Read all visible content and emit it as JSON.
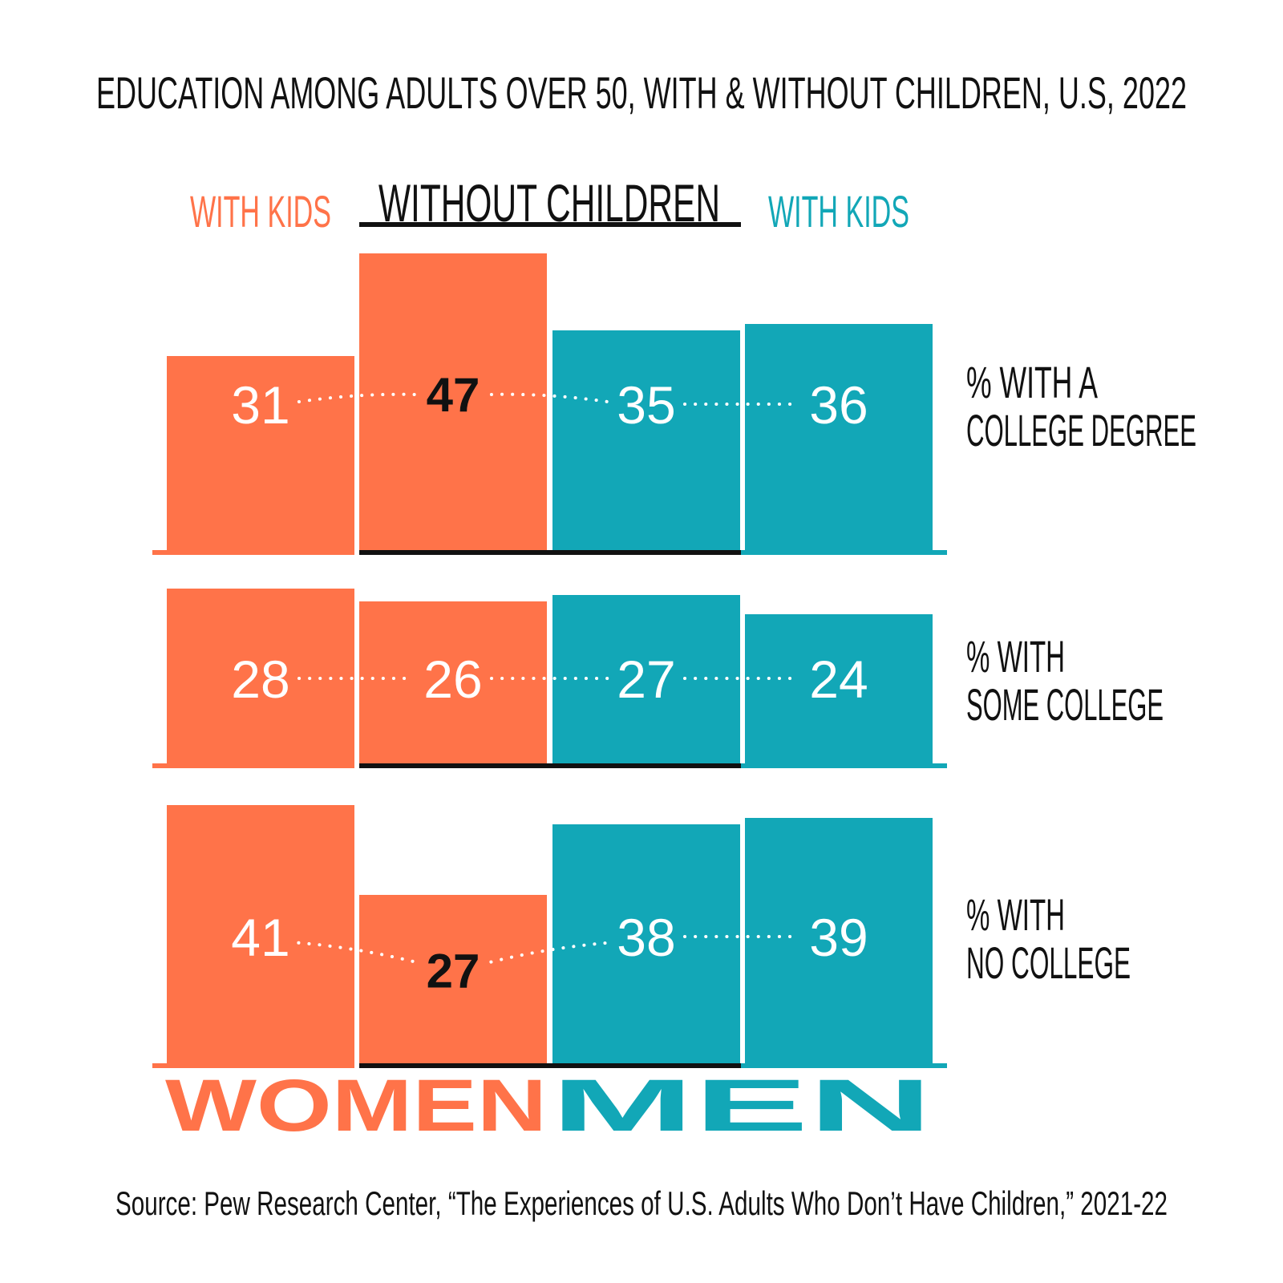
{
  "chart_data": {
    "type": "bar",
    "title": "EDUCATION AMONG ADULTS OVER 50, WITH & WITHOUT CHILDREN, U.S, 2022",
    "source": "Source: Pew Research Center, “The Experiences of U.S. Adults Who Don’t Have Children,” 2021-22",
    "column_headers": [
      "WITH KIDS",
      "WITHOUT CHILDREN",
      "WITH KIDS"
    ],
    "group_labels": [
      "WOMEN",
      "MEN"
    ],
    "categories": [
      "Women with kids",
      "Women without children",
      "Men without children",
      "Men with kids"
    ],
    "rows": [
      {
        "label_lines": [
          "% WITH A",
          "COLLEGE DEGREE"
        ],
        "values": [
          31,
          47,
          35,
          36
        ]
      },
      {
        "label_lines": [
          "% WITH",
          "SOME COLLEGE"
        ],
        "values": [
          28,
          26,
          27,
          24
        ]
      },
      {
        "label_lines": [
          "% WITH",
          "NO COLLEGE"
        ],
        "values": [
          41,
          27,
          38,
          39
        ]
      }
    ],
    "highlighted": [
      [
        0,
        1
      ],
      [
        2,
        1
      ]
    ],
    "colors": {
      "women": "#ff7349",
      "men": "#12a7b7",
      "text_dark": "#111111",
      "label_light": "#ffffff"
    }
  }
}
